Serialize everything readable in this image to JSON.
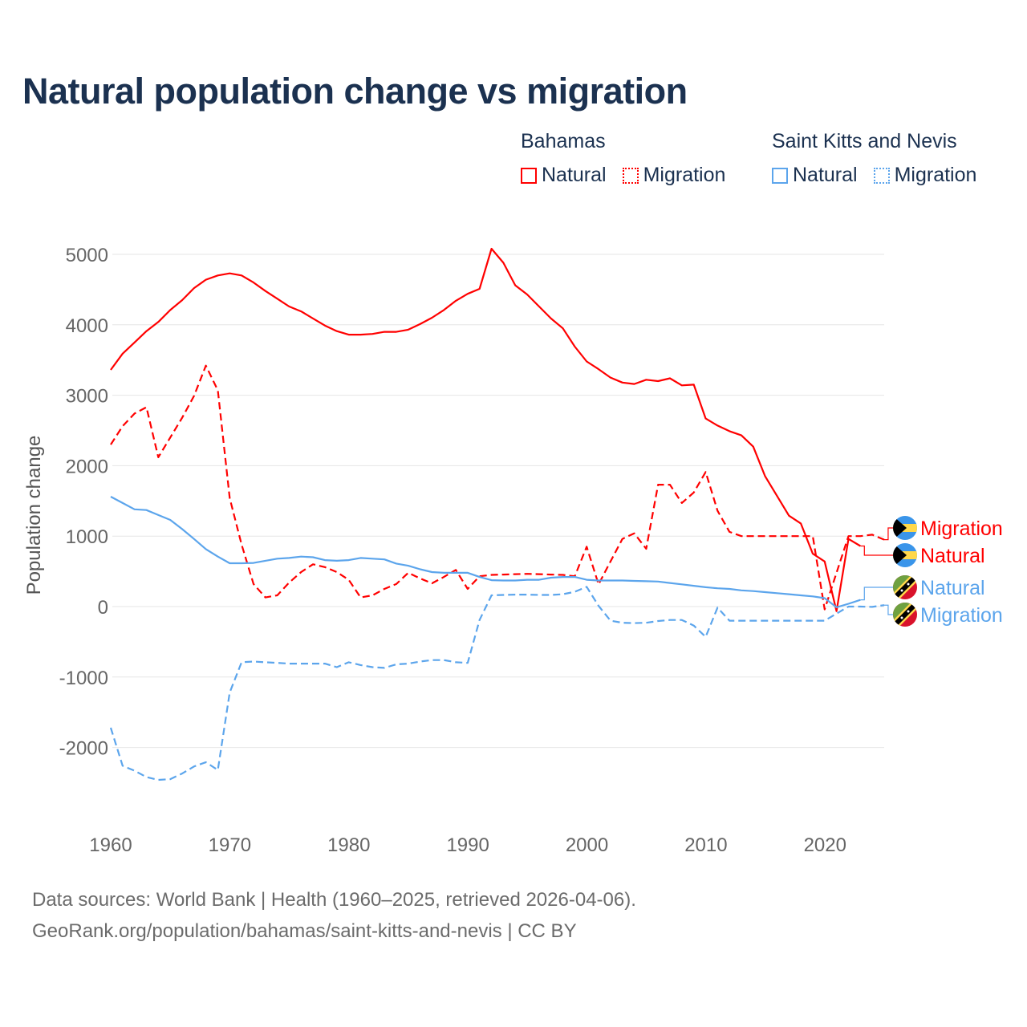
{
  "title": "Natural population change vs migration",
  "legend": [
    {
      "country": "Bahamas",
      "items": [
        {
          "label": "Natural",
          "style": "solid",
          "color": "#ff0000"
        },
        {
          "label": "Migration",
          "style": "dotted",
          "color": "#ff0000"
        }
      ]
    },
    {
      "country": "Saint Kitts and Nevis",
      "items": [
        {
          "label": "Natural",
          "style": "solid",
          "color": "#5ca5ec"
        },
        {
          "label": "Migration",
          "style": "dotted",
          "color": "#5ca5ec"
        }
      ]
    }
  ],
  "footer": {
    "line1": "Data sources: World Bank | Health (1960–2025, retrieved 2026-04-06).",
    "line2": "GeoRank.org/population/bahamas/saint-kitts-and-nevis | CC BY"
  },
  "chart_data": {
    "type": "line",
    "title": "Natural population change vs migration",
    "xlabel": "",
    "ylabel": "Population change",
    "xlim": [
      1960,
      2025
    ],
    "ylim": [
      -2500,
      5000
    ],
    "grid": true,
    "legend_placement": "top-right",
    "x_ticks": [
      "1960",
      "1970",
      "1980",
      "1990",
      "2000",
      "2010",
      "2020"
    ],
    "y_ticks": [
      "5000",
      "4000",
      "3000",
      "2000",
      "1000",
      "0",
      "-1000",
      "-2000"
    ],
    "series": [
      {
        "name": "Bahamas Natural",
        "country": "Bahamas",
        "end_label": "Natural",
        "flag": "bahamas",
        "color": "#ff0000",
        "dash": "solid",
        "start_year": 1960,
        "values": [
          3360,
          3590,
          3750,
          3910,
          4040,
          4210,
          4350,
          4520,
          4640,
          4700,
          4730,
          4700,
          4600,
          4480,
          4370,
          4260,
          4190,
          4090,
          3990,
          3910,
          3860,
          3860,
          3870,
          3900,
          3900,
          3930,
          4010,
          4100,
          4210,
          4340,
          4440,
          4510,
          5080,
          4880,
          4560,
          4430,
          4260,
          4090,
          3950,
          3690,
          3480,
          3370,
          3250,
          3180,
          3160,
          3220,
          3200,
          3240,
          3140,
          3150,
          2670,
          2570,
          2490,
          2430,
          2270,
          1850,
          1570,
          1290,
          1180,
          750,
          640,
          -65,
          960,
          860
        ]
      },
      {
        "name": "Bahamas Migration",
        "country": "Bahamas",
        "end_label": "Migration",
        "flag": "bahamas",
        "color": "#ff0000",
        "dash": "dashed",
        "start_year": 1960,
        "values": [
          2300,
          2560,
          2740,
          2830,
          2120,
          2400,
          2680,
          2990,
          3420,
          3070,
          1540,
          880,
          320,
          130,
          160,
          340,
          490,
          600,
          560,
          490,
          380,
          130,
          160,
          250,
          320,
          480,
          400,
          330,
          420,
          520,
          250,
          430,
          450,
          455,
          460,
          465,
          460,
          455,
          450,
          430,
          850,
          315,
          640,
          960,
          1040,
          820,
          1730,
          1730,
          1470,
          1620,
          1910,
          1360,
          1060,
          1000,
          1000,
          1000,
          1000,
          1000,
          1000,
          1000,
          -40,
          480,
          1000,
          1000,
          1020,
          950
        ]
      },
      {
        "name": "Saint Kitts and Nevis Natural",
        "country": "Saint Kitts and Nevis",
        "end_label": "Natural",
        "flag": "kitts",
        "color": "#5ca5ec",
        "dash": "solid",
        "start_year": 1960,
        "values": [
          1560,
          1470,
          1380,
          1370,
          1300,
          1230,
          1100,
          960,
          815,
          710,
          615,
          615,
          620,
          650,
          680,
          690,
          710,
          700,
          660,
          650,
          660,
          690,
          680,
          670,
          610,
          580,
          530,
          490,
          480,
          480,
          480,
          420,
          375,
          370,
          370,
          380,
          380,
          410,
          420,
          420,
          380,
          370,
          370,
          370,
          365,
          360,
          355,
          335,
          315,
          295,
          275,
          260,
          250,
          230,
          220,
          205,
          190,
          175,
          160,
          145,
          120,
          -10,
          40,
          95
        ]
      },
      {
        "name": "Saint Kitts and Nevis Migration",
        "country": "Saint Kitts and Nevis",
        "end_label": "Migration",
        "flag": "kitts",
        "color": "#5ca5ec",
        "dash": "dashed",
        "start_year": 1960,
        "values": [
          -1720,
          -2260,
          -2330,
          -2420,
          -2460,
          -2450,
          -2370,
          -2270,
          -2210,
          -2320,
          -1220,
          -790,
          -780,
          -790,
          -800,
          -810,
          -810,
          -810,
          -810,
          -860,
          -790,
          -830,
          -860,
          -870,
          -820,
          -810,
          -780,
          -760,
          -760,
          -790,
          -800,
          -190,
          160,
          165,
          170,
          170,
          165,
          165,
          175,
          210,
          280,
          10,
          -200,
          -230,
          -235,
          -230,
          -205,
          -190,
          -190,
          -270,
          -430,
          -15,
          -200,
          -200,
          -200,
          -200,
          -200,
          -200,
          -200,
          -200,
          -200,
          -100,
          0,
          0,
          -5,
          20
        ]
      }
    ]
  }
}
